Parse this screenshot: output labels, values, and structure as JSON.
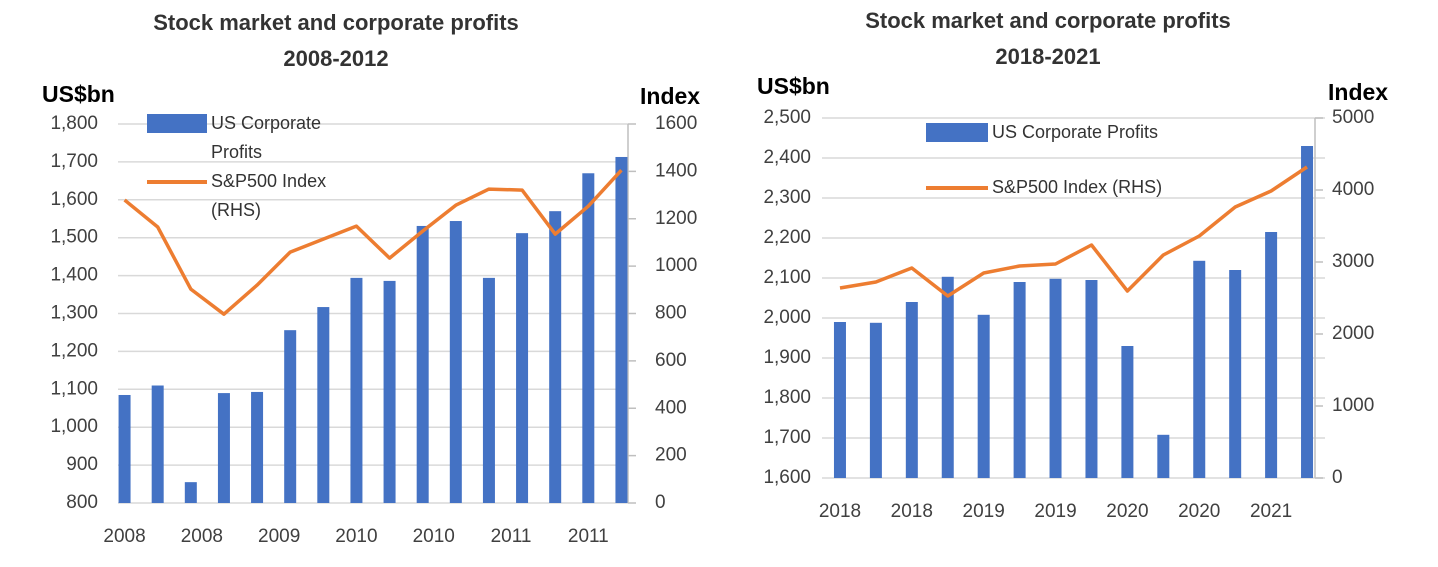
{
  "chart_data": [
    {
      "type": "bar",
      "title": "Stock market and corporate profits",
      "subtitle": "2008-2012",
      "y_label": "US$bn",
      "y2_label": "Index",
      "x_tick_labels": [
        "2008",
        "2008",
        "2009",
        "2010",
        "2010",
        "2011",
        "2011"
      ],
      "series": [
        {
          "name": "US Corporate Profits",
          "color": "#4472c4",
          "values": [
            1085,
            1110,
            855,
            1090,
            1093,
            1256,
            1317,
            1394,
            1386,
            1531,
            1544,
            1394,
            1512,
            1570,
            1670,
            1713
          ]
        },
        {
          "name": "S&P500 Index (RHS)",
          "type": "line",
          "axis": "y2",
          "color": "#ed7d31",
          "values": [
            1279,
            1165,
            903,
            797,
            920,
            1059,
            1114,
            1169,
            1034,
            1148,
            1257,
            1325,
            1321,
            1135,
            1253,
            1405
          ]
        }
      ],
      "ylim": [
        800,
        1800
      ],
      "yticks": [
        800,
        900,
        {
          "value": 1000,
          "label": "1,000"
        },
        {
          "value": 1100,
          "label": "1,100"
        },
        {
          "value": 1200,
          "label": "1,200"
        },
        {
          "value": 1300,
          "label": "1,300"
        },
        {
          "value": 1400,
          "label": "1,400"
        },
        {
          "value": 1500,
          "label": "1,500"
        },
        {
          "value": 1600,
          "label": "1,600"
        },
        {
          "value": 1700,
          "label": "1,700"
        },
        {
          "value": 1800,
          "label": "1,800"
        }
      ],
      "y2lim": [
        0,
        1600
      ],
      "y2ticks": [
        0,
        200,
        400,
        600,
        800,
        1000,
        1200,
        1400,
        1600
      ],
      "grid": true
    },
    {
      "type": "bar",
      "title": "Stock market and corporate profits",
      "subtitle": "2018-2021",
      "y_label": "US$bn",
      "y2_label": "Index",
      "categories": [
        "2018",
        null,
        "2018",
        null,
        "2019",
        null,
        "2019",
        null,
        "2020",
        null,
        "2020",
        null,
        "2021",
        null
      ],
      "series": [
        {
          "name": "US Corporate Profits",
          "color": "#4472c4",
          "values": [
            1990,
            1988,
            2040,
            2103,
            2008,
            2090,
            2098,
            2095,
            1930,
            1708,
            2143,
            2120,
            2215,
            2430
          ]
        },
        {
          "name": "S&P500 Index (RHS)",
          "type": "line",
          "axis": "y2",
          "color": "#ed7d31",
          "values": [
            2639,
            2722,
            2917,
            2528,
            2847,
            2944,
            2972,
            3236,
            2597,
            3097,
            3361,
            3764,
            3986,
            4319
          ]
        }
      ],
      "ylim": [
        1600,
        2500
      ],
      "yticks": [
        {
          "value": 1600,
          "label": "1,600"
        },
        {
          "value": 1700,
          "label": "1,700"
        },
        {
          "value": 1800,
          "label": "1,800"
        },
        {
          "value": 1900,
          "label": "1,900"
        },
        {
          "value": 2000,
          "label": "2,000"
        },
        {
          "value": 2100,
          "label": "2,100"
        },
        {
          "value": 2200,
          "label": "2,200"
        },
        {
          "value": 2300,
          "label": "2,300"
        },
        {
          "value": 2400,
          "label": "2,400"
        },
        {
          "value": 2500,
          "label": "2,500"
        }
      ],
      "y2lim": [
        0,
        5000
      ],
      "y2ticks": [
        0,
        1000,
        2000,
        3000,
        4000,
        5000
      ],
      "grid": true
    }
  ]
}
